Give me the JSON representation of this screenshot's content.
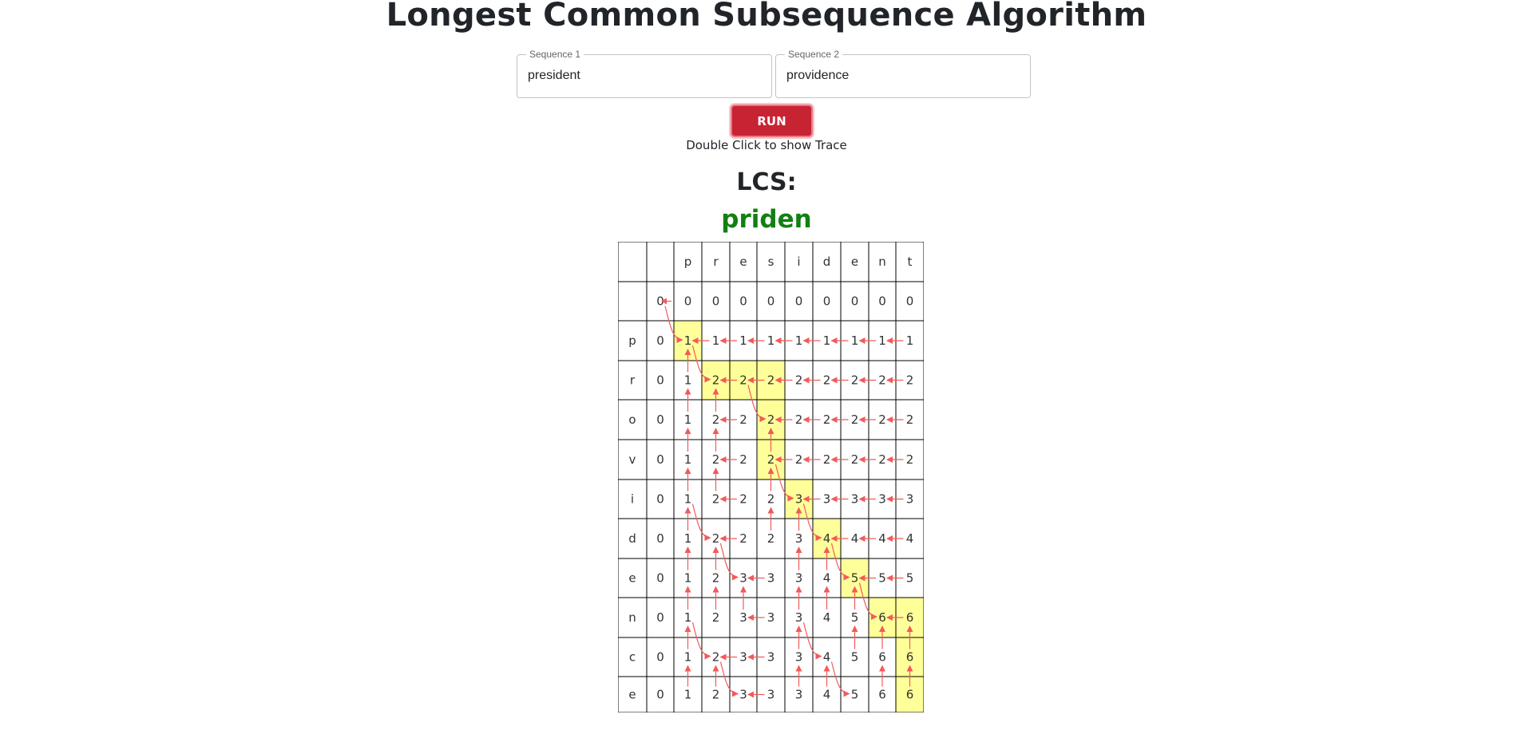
{
  "page": {
    "title": "Longest Common Subsequence Algorithm",
    "run_label": "RUN",
    "hint": "Double Click to show Trace",
    "lcs_label": "LCS:",
    "lcs_value": "priden"
  },
  "inputs": {
    "sequence1": {
      "label": "Sequence 1",
      "value": "president"
    },
    "sequence2": {
      "label": "Sequence 2",
      "value": "providence"
    }
  },
  "colors": {
    "accent": "#c82333",
    "lcs_text": "#118011",
    "highlight": "#ffff99",
    "arrow": "#f25a5a",
    "grid_line": "#000000"
  },
  "table": {
    "col_headers": [
      "p",
      "r",
      "e",
      "s",
      "i",
      "d",
      "e",
      "n",
      "t"
    ],
    "row_headers": [
      "p",
      "r",
      "o",
      "v",
      "i",
      "d",
      "e",
      "n",
      "c",
      "e"
    ],
    "base_row": [
      0,
      0,
      0,
      0,
      0,
      0,
      0,
      0,
      0,
      0
    ],
    "rows": [
      [
        0,
        1,
        1,
        1,
        1,
        1,
        1,
        1,
        1,
        1
      ],
      [
        0,
        1,
        2,
        2,
        2,
        2,
        2,
        2,
        2,
        2
      ],
      [
        0,
        1,
        2,
        2,
        2,
        2,
        2,
        2,
        2,
        2
      ],
      [
        0,
        1,
        2,
        2,
        2,
        2,
        2,
        2,
        2,
        2
      ],
      [
        0,
        1,
        2,
        2,
        2,
        3,
        3,
        3,
        3,
        3
      ],
      [
        0,
        1,
        2,
        2,
        2,
        3,
        4,
        4,
        4,
        4
      ],
      [
        0,
        1,
        2,
        3,
        3,
        3,
        4,
        5,
        5,
        5
      ],
      [
        0,
        1,
        2,
        3,
        3,
        3,
        4,
        5,
        6,
        6
      ],
      [
        0,
        1,
        2,
        3,
        3,
        3,
        4,
        5,
        6,
        6
      ],
      [
        0,
        1,
        2,
        3,
        3,
        3,
        4,
        5,
        6,
        6
      ]
    ],
    "arrows": [
      "",
      "d",
      "l",
      "l",
      "l",
      "l",
      "l",
      "l",
      "l",
      "l",
      "",
      "u",
      "d",
      "l",
      "l",
      "l",
      "l",
      "l",
      "l",
      "l",
      "",
      "u",
      "u",
      "l",
      "d",
      "l",
      "l",
      "l",
      "l",
      "l",
      "",
      "u",
      "u",
      "l",
      "u",
      "l",
      "l",
      "l",
      "l",
      "l",
      "",
      "u",
      "u",
      "l",
      "u",
      "d",
      "l",
      "l",
      "l",
      "l",
      "",
      "u",
      "d",
      "l",
      "u",
      "u",
      "d",
      "l",
      "l",
      "l",
      "",
      "u",
      "u",
      "d",
      "l",
      "u",
      "u",
      "d",
      "l",
      "l",
      "",
      "u",
      "u",
      "u",
      "l",
      "u",
      "u",
      "u",
      "d",
      "l",
      "",
      "u",
      "d",
      "l",
      "l",
      "u",
      "d",
      "u",
      "u",
      "u",
      "",
      "u",
      "u",
      "d",
      "l",
      "u",
      "u",
      "d",
      "u",
      "u"
    ],
    "path": [
      [
        1,
        1
      ],
      [
        2,
        2
      ],
      [
        2,
        3
      ],
      [
        2,
        4
      ],
      [
        3,
        4
      ],
      [
        4,
        4
      ],
      [
        5,
        5
      ],
      [
        6,
        6
      ],
      [
        7,
        7
      ],
      [
        8,
        8
      ],
      [
        8,
        9
      ],
      [
        9,
        9
      ],
      [
        10,
        9
      ]
    ],
    "origin_arrow": "l"
  }
}
